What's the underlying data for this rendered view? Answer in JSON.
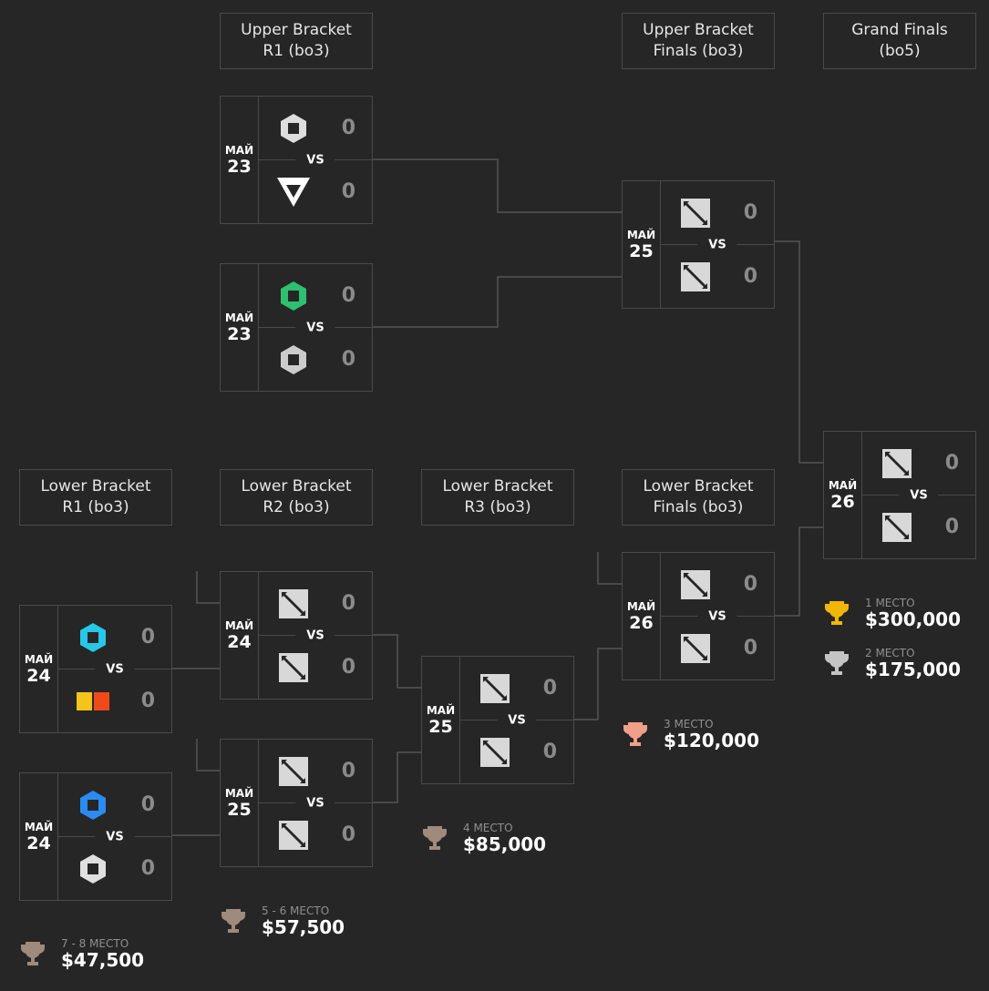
{
  "headers": [
    {
      "id": "ub-r1",
      "label": "Upper Bracket\nR1 (bo3)"
    },
    {
      "id": "ub-finals",
      "label": "Upper Bracket\nFinals (bo3)"
    },
    {
      "id": "grand-finals",
      "label": "Grand Finals\n(bo5)"
    },
    {
      "id": "lb-r1",
      "label": "Lower Bracket\nR1 (bo3)"
    },
    {
      "id": "lb-r2",
      "label": "Lower Bracket\nR2 (bo3)"
    },
    {
      "id": "lb-r3",
      "label": "Lower Bracket\nR3 (bo3)"
    },
    {
      "id": "lb-finals",
      "label": "Lower Bracket\nFinals (bo3)"
    }
  ],
  "vs_label": "VS",
  "matches": [
    {
      "id": "ub-r1-m1",
      "month": "МАЙ",
      "day": "23",
      "teams": [
        {
          "logo": "gladiators-logo-icon",
          "score": "0"
        },
        {
          "logo": "tundra-logo-icon",
          "score": "0"
        }
      ]
    },
    {
      "id": "ub-r1-m2",
      "month": "МАЙ",
      "day": "23",
      "teams": [
        {
          "logo": "team-liquid-falcon-logo-icon",
          "score": "0"
        },
        {
          "logo": "xtreme-logo-icon",
          "score": "0"
        }
      ]
    },
    {
      "id": "ub-finals",
      "month": "МАЙ",
      "day": "25",
      "teams": [
        {
          "logo": "dota-placeholder-icon",
          "score": "0"
        },
        {
          "logo": "dota-placeholder-icon",
          "score": "0"
        }
      ]
    },
    {
      "id": "grand-finals",
      "month": "МАЙ",
      "day": "26",
      "teams": [
        {
          "logo": "dota-placeholder-icon",
          "score": "0"
        },
        {
          "logo": "dota-placeholder-icon",
          "score": "0"
        }
      ]
    },
    {
      "id": "lb-r1-m1",
      "month": "МАЙ",
      "day": "24",
      "teams": [
        {
          "logo": "aurora-logo-icon",
          "score": "0"
        },
        {
          "logo": "betboom-logo-icon",
          "score": "0"
        }
      ]
    },
    {
      "id": "lb-r1-m2",
      "month": "МАЙ",
      "day": "24",
      "teams": [
        {
          "logo": "parivision-logo-icon",
          "score": "0"
        },
        {
          "logo": "heroic-logo-icon",
          "score": "0"
        }
      ]
    },
    {
      "id": "lb-r2-m1",
      "month": "МАЙ",
      "day": "24",
      "teams": [
        {
          "logo": "dota-placeholder-icon",
          "score": "0"
        },
        {
          "logo": "dota-placeholder-icon",
          "score": "0"
        }
      ]
    },
    {
      "id": "lb-r2-m2",
      "month": "МАЙ",
      "day": "25",
      "teams": [
        {
          "logo": "dota-placeholder-icon",
          "score": "0"
        },
        {
          "logo": "dota-placeholder-icon",
          "score": "0"
        }
      ]
    },
    {
      "id": "lb-r3",
      "month": "МАЙ",
      "day": "25",
      "teams": [
        {
          "logo": "dota-placeholder-icon",
          "score": "0"
        },
        {
          "logo": "dota-placeholder-icon",
          "score": "0"
        }
      ]
    },
    {
      "id": "lb-finals",
      "month": "МАЙ",
      "day": "26",
      "teams": [
        {
          "logo": "dota-placeholder-icon",
          "score": "0"
        },
        {
          "logo": "dota-placeholder-icon",
          "score": "0"
        }
      ]
    }
  ],
  "prizes": [
    {
      "place": "1 МЕСТО",
      "amount": "$300,000",
      "color": "#f2b705"
    },
    {
      "place": "2 МЕСТО",
      "amount": "$175,000",
      "color": "#c4c4c4"
    },
    {
      "place": "3 МЕСТО",
      "amount": "$120,000",
      "color": "#f0a08a"
    },
    {
      "place": "4 МЕСТО",
      "amount": "$85,000",
      "color": "#a08a7c"
    },
    {
      "place": "5 - 6 МЕСТО",
      "amount": "$57,500",
      "color": "#a08a7c"
    },
    {
      "place": "7 - 8 МЕСТО",
      "amount": "$47,500",
      "color": "#a08a7c"
    }
  ]
}
